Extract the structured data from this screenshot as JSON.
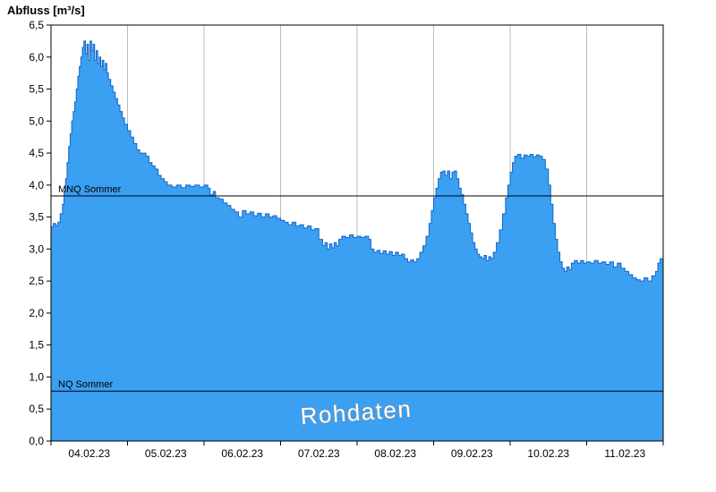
{
  "header": {
    "title": "Abfluss [m³/s]"
  },
  "chart_data": {
    "type": "area",
    "title": "Abfluss [m³/s]",
    "ylabel": "Abfluss [m³/s]",
    "xlabel": "",
    "xlim_days": [
      0,
      8
    ],
    "ylim": [
      0,
      6.5
    ],
    "grid": "vertical-day-boundaries",
    "x_tick_labels": [
      "04.02.23",
      "05.02.23",
      "06.02.23",
      "07.02.23",
      "08.02.23",
      "09.02.23",
      "10.02.23",
      "11.02.23"
    ],
    "y_ticks": [
      0,
      0.5,
      1,
      1.5,
      2,
      2.5,
      3,
      3.5,
      4,
      4.5,
      5,
      5.5,
      6,
      6.5
    ],
    "y_tick_labels": [
      "0,0",
      "0,5",
      "1,0",
      "1,5",
      "2,0",
      "2,5",
      "3,0",
      "3,5",
      "4,0",
      "4,5",
      "5,0",
      "5,5",
      "6,0",
      "6,5"
    ],
    "reference_lines": [
      {
        "label": "MNQ Sommer",
        "value": 3.83
      },
      {
        "label": "NQ Sommer",
        "value": 0.78
      }
    ],
    "watermark": "Rohdaten",
    "colors": {
      "fill": "#3B9FF2",
      "stroke": "#1467C8",
      "grid": "#bcbcbc",
      "frame": "#000000",
      "refline": "#000000",
      "watermark_fill": "#ffffff",
      "watermark_outline": "#8f8f8f"
    },
    "series": [
      {
        "name": "Abfluss Rohdaten",
        "t_days": [
          0.0,
          0.03,
          0.06,
          0.09,
          0.12,
          0.15,
          0.17,
          0.19,
          0.21,
          0.23,
          0.25,
          0.27,
          0.29,
          0.31,
          0.33,
          0.35,
          0.37,
          0.39,
          0.41,
          0.43,
          0.45,
          0.47,
          0.49,
          0.51,
          0.53,
          0.55,
          0.57,
          0.59,
          0.61,
          0.63,
          0.65,
          0.67,
          0.69,
          0.71,
          0.73,
          0.75,
          0.78,
          0.81,
          0.84,
          0.87,
          0.9,
          0.93,
          0.96,
          1.0,
          1.04,
          1.08,
          1.12,
          1.16,
          1.2,
          1.24,
          1.28,
          1.32,
          1.36,
          1.4,
          1.44,
          1.48,
          1.52,
          1.58,
          1.64,
          1.7,
          1.76,
          1.82,
          1.88,
          1.94,
          2.0,
          2.05,
          2.08,
          2.12,
          2.15,
          2.2,
          2.25,
          2.3,
          2.35,
          2.4,
          2.45,
          2.5,
          2.55,
          2.6,
          2.65,
          2.7,
          2.75,
          2.8,
          2.85,
          2.9,
          2.95,
          3.0,
          3.05,
          3.1,
          3.15,
          3.2,
          3.25,
          3.3,
          3.35,
          3.4,
          3.45,
          3.5,
          3.55,
          3.58,
          3.61,
          3.64,
          3.67,
          3.7,
          3.73,
          3.76,
          3.8,
          3.85,
          3.9,
          3.95,
          4.0,
          4.05,
          4.1,
          4.15,
          4.18,
          4.22,
          4.26,
          4.3,
          4.34,
          4.38,
          4.42,
          4.46,
          4.5,
          4.54,
          4.58,
          4.62,
          4.66,
          4.7,
          4.74,
          4.78,
          4.82,
          4.86,
          4.9,
          4.94,
          4.97,
          5.0,
          5.03,
          5.06,
          5.09,
          5.12,
          5.15,
          5.18,
          5.21,
          5.24,
          5.27,
          5.3,
          5.33,
          5.36,
          5.39,
          5.42,
          5.45,
          5.48,
          5.51,
          5.54,
          5.57,
          5.6,
          5.63,
          5.66,
          5.69,
          5.72,
          5.75,
          5.78,
          5.82,
          5.86,
          5.9,
          5.94,
          5.97,
          6.0,
          6.03,
          6.06,
          6.1,
          6.14,
          6.18,
          6.22,
          6.26,
          6.3,
          6.34,
          6.38,
          6.42,
          6.46,
          6.5,
          6.53,
          6.56,
          6.59,
          6.62,
          6.65,
          6.68,
          6.71,
          6.74,
          6.77,
          6.8,
          6.84,
          6.88,
          6.92,
          6.96,
          7.0,
          7.05,
          7.1,
          7.15,
          7.2,
          7.25,
          7.3,
          7.35,
          7.4,
          7.45,
          7.5,
          7.55,
          7.6,
          7.65,
          7.7,
          7.75,
          7.8,
          7.85,
          7.9,
          7.93,
          7.96,
          8.0
        ],
        "values": [
          3.35,
          3.4,
          3.37,
          3.42,
          3.55,
          3.7,
          3.9,
          4.1,
          4.35,
          4.6,
          4.8,
          5.0,
          5.15,
          5.3,
          5.5,
          5.7,
          5.85,
          6.0,
          6.15,
          6.25,
          6.05,
          6.2,
          5.95,
          6.25,
          6.1,
          6.2,
          5.95,
          6.1,
          5.9,
          6.0,
          5.85,
          5.95,
          5.8,
          5.9,
          5.75,
          5.65,
          5.55,
          5.45,
          5.35,
          5.25,
          5.15,
          5.05,
          4.95,
          4.85,
          4.75,
          4.65,
          4.55,
          4.5,
          4.5,
          4.45,
          4.35,
          4.3,
          4.25,
          4.15,
          4.1,
          4.05,
          4.0,
          3.97,
          4.0,
          3.96,
          4.0,
          3.98,
          4.0,
          3.97,
          4.0,
          3.95,
          3.85,
          3.9,
          3.8,
          3.78,
          3.72,
          3.68,
          3.62,
          3.58,
          3.5,
          3.6,
          3.55,
          3.58,
          3.52,
          3.56,
          3.5,
          3.55,
          3.5,
          3.52,
          3.48,
          3.45,
          3.42,
          3.38,
          3.42,
          3.36,
          3.38,
          3.33,
          3.36,
          3.3,
          3.32,
          3.15,
          3.05,
          3.1,
          3.0,
          3.08,
          3.02,
          3.1,
          3.05,
          3.15,
          3.2,
          3.18,
          3.22,
          3.18,
          3.2,
          3.18,
          3.2,
          3.15,
          3.0,
          2.95,
          2.98,
          2.93,
          2.97,
          2.92,
          2.96,
          2.9,
          2.95,
          2.9,
          2.92,
          2.85,
          2.8,
          2.83,
          2.8,
          2.85,
          2.95,
          3.05,
          3.2,
          3.4,
          3.6,
          3.8,
          3.95,
          4.1,
          4.2,
          4.22,
          4.15,
          4.22,
          4.1,
          4.2,
          4.22,
          4.1,
          3.95,
          3.85,
          3.7,
          3.55,
          3.4,
          3.25,
          3.1,
          3.0,
          2.92,
          2.88,
          2.85,
          2.9,
          2.82,
          2.88,
          2.85,
          2.95,
          3.1,
          3.3,
          3.55,
          3.8,
          4.0,
          4.2,
          4.35,
          4.45,
          4.48,
          4.42,
          4.47,
          4.45,
          4.48,
          4.44,
          4.47,
          4.45,
          4.4,
          4.25,
          4.0,
          3.7,
          3.4,
          3.15,
          2.95,
          2.8,
          2.7,
          2.65,
          2.72,
          2.68,
          2.78,
          2.82,
          2.78,
          2.82,
          2.78,
          2.8,
          2.78,
          2.82,
          2.78,
          2.8,
          2.76,
          2.8,
          2.72,
          2.78,
          2.7,
          2.65,
          2.6,
          2.55,
          2.52,
          2.5,
          2.55,
          2.5,
          2.58,
          2.65,
          2.78,
          2.85,
          2.72
        ]
      }
    ]
  }
}
